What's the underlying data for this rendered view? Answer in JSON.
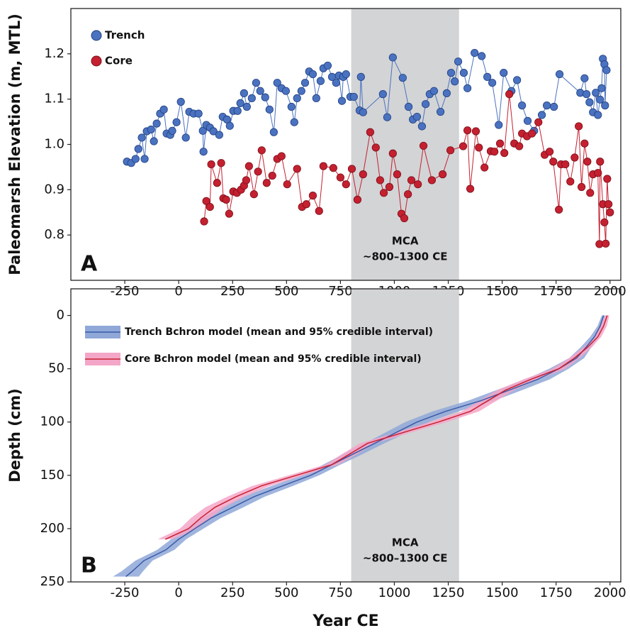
{
  "chart_data": [
    {
      "type": "line_markers",
      "panel_label": "A",
      "y_label": "Paleomarsh Elevation (m, MTL)",
      "annotation": [
        "MCA",
        "~800–1300 CE"
      ],
      "shaded_span": [
        800,
        1300
      ],
      "shade_color": "#d3d4d6",
      "xlim": [
        -500,
        2050
      ],
      "xticks": [
        -250,
        0,
        250,
        500,
        750,
        1000,
        1250,
        1500,
        1750,
        2000
      ],
      "ylim": [
        0.7,
        1.3
      ],
      "yticks": [
        0.8,
        0.9,
        {
          "value": 1,
          "label": "1.0"
        },
        1.1,
        1.2
      ],
      "legend": "upper left",
      "series": [
        {
          "name": "Trench",
          "color": "#4a72c0",
          "edge_color": "#1f3f80",
          "x": [
            -240,
            -220,
            -200,
            -187,
            -171,
            -158,
            -148,
            -128,
            -115,
            -102,
            -86,
            -69,
            -56,
            -39,
            -30,
            -10,
            10,
            33,
            49,
            69,
            92,
            112,
            115,
            128,
            145,
            161,
            188,
            204,
            224,
            237,
            253,
            273,
            286,
            303,
            316,
            339,
            359,
            378,
            401,
            421,
            441,
            457,
            477,
            497,
            523,
            536,
            549,
            569,
            586,
            605,
            622,
            638,
            658,
            671,
            691,
            711,
            730,
            743,
            757,
            763,
            776,
            796,
            812,
            839,
            845,
            855,
            947,
            967,
            993,
            1039,
            1066,
            1086,
            1105,
            1128,
            1145,
            1164,
            1184,
            1214,
            1243,
            1263,
            1280,
            1296,
            1322,
            1339,
            1372,
            1405,
            1431,
            1454,
            1484,
            1507,
            1543,
            1569,
            1592,
            1618,
            1648,
            1684,
            1707,
            1740,
            1766,
            1862,
            1882,
            1891,
            1905,
            1921,
            1934,
            1944,
            1954,
            1961,
            1967,
            1974,
            1977,
            1984
          ],
          "values": [
            0.962,
            0.959,
            0.968,
            0.99,
            1.015,
            0.968,
            1.029,
            1.033,
            1.007,
            1.046,
            1.068,
            1.077,
            1.024,
            1.021,
            1.03,
            1.049,
            1.094,
            1.015,
            1.072,
            1.068,
            1.068,
            1.03,
            0.984,
            1.043,
            1.037,
            1.029,
            1.021,
            1.061,
            1.055,
            1.041,
            1.074,
            1.074,
            1.091,
            1.113,
            1.083,
            1.102,
            1.136,
            1.118,
            1.104,
            1.077,
            1.027,
            1.136,
            1.124,
            1.118,
            1.083,
            1.049,
            1.102,
            1.118,
            1.136,
            1.161,
            1.155,
            1.102,
            1.14,
            1.168,
            1.174,
            1.149,
            1.136,
            1.152,
            1.096,
            1.149,
            1.155,
            1.105,
            1.105,
            1.075,
            1.149,
            1.071,
            1.111,
            1.06,
            1.192,
            1.147,
            1.083,
            1.055,
            1.061,
            1.04,
            1.089,
            1.111,
            1.118,
            1.072,
            1.113,
            1.158,
            1.139,
            1.183,
            1.158,
            1.124,
            1.202,
            1.195,
            1.149,
            1.136,
            1.043,
            1.158,
            1.118,
            1.142,
            1.086,
            1.052,
            1.03,
            1.065,
            1.086,
            1.083,
            1.155,
            1.114,
            1.146,
            1.111,
            1.093,
            1.071,
            1.114,
            1.065,
            1.099,
            1.124,
            1.189,
            1.177,
            1.086,
            1.164
          ]
        },
        {
          "name": "Core",
          "color": "#c42030",
          "edge_color": "#7a0f18",
          "x": [
            118,
            128,
            145,
            151,
            178,
            197,
            207,
            220,
            234,
            253,
            270,
            289,
            303,
            313,
            326,
            349,
            368,
            385,
            408,
            434,
            457,
            477,
            503,
            549,
            572,
            592,
            622,
            651,
            671,
            717,
            750,
            776,
            803,
            829,
            855,
            888,
            914,
            934,
            951,
            977,
            993,
            1013,
            1033,
            1046,
            1063,
            1079,
            1109,
            1135,
            1174,
            1224,
            1260,
            1319,
            1339,
            1352,
            1378,
            1392,
            1418,
            1447,
            1464,
            1490,
            1510,
            1533,
            1556,
            1579,
            1592,
            1615,
            1638,
            1668,
            1697,
            1720,
            1737,
            1763,
            1773,
            1793,
            1816,
            1836,
            1855,
            1868,
            1882,
            1895,
            1908,
            1921,
            1944,
            1951,
            1954,
            1967,
            1974,
            1980,
            1987,
            1993,
            2000
          ],
          "values": [
            0.83,
            0.875,
            0.862,
            0.956,
            0.915,
            0.959,
            0.881,
            0.878,
            0.847,
            0.896,
            0.893,
            0.9,
            0.909,
            0.921,
            0.952,
            0.89,
            0.94,
            0.987,
            0.915,
            0.931,
            0.968,
            0.974,
            0.912,
            0.946,
            0.862,
            0.868,
            0.887,
            0.853,
            0.952,
            0.948,
            0.927,
            0.912,
            0.946,
            0.878,
            0.934,
            1.027,
            0.993,
            0.921,
            0.893,
            0.906,
            0.98,
            0.934,
            0.847,
            0.837,
            0.89,
            0.921,
            0.912,
            0.997,
            0.921,
            0.934,
            0.987,
            0.996,
            1.031,
            0.902,
            1.029,
            0.993,
            0.949,
            0.985,
            0.984,
            1.002,
            0.981,
            1.111,
            1.002,
            0.996,
            1.024,
            1.018,
            1.024,
            1.049,
            0.977,
            0.984,
            0.962,
            0.856,
            0.956,
            0.956,
            0.918,
            0.971,
            1.04,
            0.906,
            1.002,
            0.962,
            0.893,
            0.934,
            0.937,
            0.78,
            0.962,
            0.868,
            0.828,
            0.781,
            0.924,
            0.868,
            0.85
          ]
        }
      ]
    },
    {
      "type": "ribbon",
      "panel_label": "B",
      "y_label": "Depth (cm)",
      "x_label": "Year CE",
      "annotation": [
        "MCA",
        "~800–1300 CE"
      ],
      "shaded_span": [
        800,
        1300
      ],
      "shade_color": "#d3d4d6",
      "xlim": [
        -500,
        2050
      ],
      "xticks": [
        -250,
        0,
        250,
        500,
        750,
        1000,
        1250,
        1500,
        1750,
        2000
      ],
      "ylim": [
        -25,
        250
      ],
      "y_inverted": true,
      "yticks": [
        0,
        50,
        100,
        150,
        200,
        250
      ],
      "legend": "upper left",
      "series": [
        {
          "name": "Trench Bchron model (mean and 95% credible interval)",
          "color": "#3a5aa8",
          "band_color": "#8fa8d8",
          "y": [
            0,
            10,
            20,
            30,
            40,
            50,
            60,
            70,
            80,
            90,
            100,
            110,
            120,
            130,
            140,
            150,
            160,
            170,
            180,
            190,
            200,
            210,
            220,
            230,
            240,
            245
          ],
          "x": [
            1970,
            1954,
            1928,
            1888,
            1845,
            1763,
            1664,
            1533,
            1401,
            1237,
            1105,
            1007,
            908,
            809,
            710,
            612,
            480,
            349,
            250,
            151,
            75,
            0,
            -60,
            -161,
            -215,
            -245
          ],
          "x_lower": [
            1962,
            1942,
            1908,
            1863,
            1810,
            1718,
            1609,
            1473,
            1341,
            1177,
            1050,
            957,
            863,
            764,
            670,
            572,
            430,
            299,
            200,
            106,
            35,
            -35,
            -100,
            -201,
            -265,
            -305
          ],
          "x_upper": [
            1978,
            1966,
            1948,
            1913,
            1880,
            1808,
            1719,
            1593,
            1461,
            1297,
            1160,
            1057,
            953,
            854,
            750,
            652,
            530,
            399,
            300,
            196,
            115,
            35,
            -20,
            -121,
            -165,
            -185
          ]
        },
        {
          "name": "Core Bchron model (mean and 95% credible interval)",
          "color": "#c8202f",
          "band_color": "#f4a6c8",
          "y": [
            0,
            10,
            20,
            30,
            40,
            50,
            60,
            70,
            80,
            90,
            100,
            110,
            120,
            130,
            140,
            150,
            160,
            170,
            180,
            190,
            200,
            210
          ],
          "x": [
            1987,
            1970,
            1944,
            1895,
            1835,
            1763,
            1632,
            1516,
            1434,
            1352,
            1204,
            1039,
            875,
            793,
            710,
            546,
            382,
            266,
            168,
            102,
            46,
            -62
          ],
          "x_lower": [
            1977,
            1955,
            1929,
            1875,
            1810,
            1733,
            1597,
            1476,
            1394,
            1312,
            1164,
            1004,
            840,
            758,
            680,
            511,
            342,
            226,
            123,
            57,
            6,
            -97
          ],
          "x_upper": [
            1997,
            1985,
            1959,
            1915,
            1860,
            1793,
            1667,
            1556,
            1474,
            1392,
            1244,
            1074,
            910,
            828,
            740,
            581,
            422,
            306,
            213,
            147,
            86,
            -27
          ]
        }
      ]
    }
  ]
}
